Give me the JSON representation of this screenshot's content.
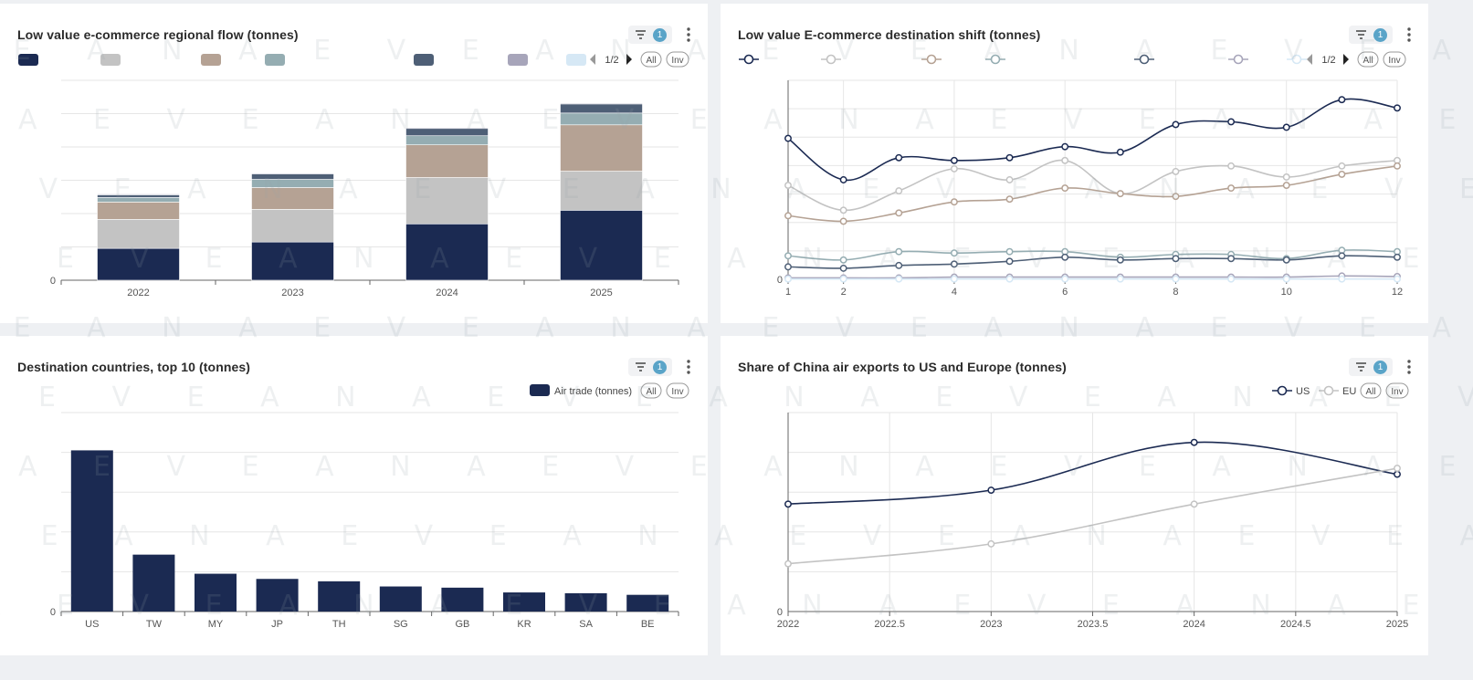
{
  "watermark": "A E V E A N",
  "panels": {
    "p1": {
      "title": "Low value e-commerce regional flow (tonnes)",
      "filter_count": "1"
    },
    "p2": {
      "title": "Low value E-commerce destination shift (tonnes)",
      "filter_count": "1"
    },
    "p3": {
      "title": "Destination countries, top 10 (tonnes)",
      "filter_count": "1"
    },
    "p4": {
      "title": "Share of China air exports to US and Europe (tonnes)",
      "filter_count": "1"
    }
  },
  "legend_controls": {
    "page": "1/2",
    "all": "All",
    "inv": "Inv"
  },
  "colors": {
    "navy": "#1b2a52",
    "silver": "#c3c3c3",
    "taupe": "#b5a294",
    "teal": "#95adb2",
    "slate": "#4e5f76",
    "lavender": "#a7a5ba",
    "lightblue": "#d6e8f5"
  },
  "chart_data": [
    {
      "id": "p1",
      "type": "bar",
      "stacked": true,
      "categories": [
        "2022",
        "2023",
        "2024",
        "2025"
      ],
      "y_tick_labels": [
        "0"
      ],
      "series": [
        {
          "color": "#1b2a52",
          "values": [
            35,
            42,
            62,
            77
          ]
        },
        {
          "color": "#c3c3c3",
          "values": [
            32,
            36,
            51,
            43
          ]
        },
        {
          "color": "#b5a294",
          "values": [
            19,
            24,
            36,
            51
          ]
        },
        {
          "color": "#95adb2",
          "values": [
            5,
            9,
            10,
            13
          ]
        },
        {
          "color": "#4e5f76",
          "values": [
            3,
            6,
            8,
            10
          ]
        },
        {
          "color": "#a7a5ba",
          "values": [
            1,
            1,
            1,
            1
          ]
        },
        {
          "color": "#d6e8f5",
          "values": [
            0.5,
            0.5,
            0.5,
            0.5
          ]
        }
      ],
      "ylim": [
        0,
        220
      ],
      "grid": true,
      "legend": "top-left"
    },
    {
      "id": "p2",
      "type": "line",
      "smooth": true,
      "x": [
        1,
        2,
        3,
        4,
        5,
        6,
        7,
        8,
        9,
        10,
        11,
        12
      ],
      "x_tick_labels": [
        "1",
        "2",
        "4",
        "6",
        "8",
        "10",
        "12"
      ],
      "y_tick_labels": [
        "0"
      ],
      "series": [
        {
          "color": "#1b2a52",
          "values": [
            51,
            36,
            44,
            43,
            44,
            48,
            46,
            56,
            57,
            55,
            65,
            62
          ]
        },
        {
          "color": "#c3c3c3",
          "values": [
            34,
            25,
            32,
            40,
            36,
            43,
            31,
            39,
            41,
            37,
            41,
            43
          ]
        },
        {
          "color": "#b5a294",
          "values": [
            23,
            21,
            24,
            28,
            29,
            33,
            31,
            30,
            33,
            34,
            38,
            41
          ]
        },
        {
          "color": "#95adb2",
          "values": [
            8.5,
            7,
            10,
            9.5,
            10,
            10,
            8,
            9,
            9,
            7.5,
            10.5,
            10
          ]
        },
        {
          "color": "#4e5f76",
          "values": [
            4.5,
            4,
            5,
            5.5,
            6.5,
            8,
            7,
            7.5,
            7.5,
            7,
            8.5,
            8
          ]
        },
        {
          "color": "#a7a5ba",
          "values": [
            0.5,
            0.5,
            0.5,
            0.8,
            0.8,
            0.8,
            0.8,
            0.8,
            0.8,
            0.8,
            1.2,
            1
          ]
        },
        {
          "color": "#d6e8f5",
          "values": [
            0.1,
            0.1,
            0.1,
            0.1,
            0.1,
            0.1,
            0.1,
            0.1,
            0.1,
            0.1,
            0.1,
            0.1
          ]
        }
      ],
      "ylim": [
        0,
        72
      ],
      "xlim": [
        1,
        12
      ],
      "grid": true,
      "legend": "top-left"
    },
    {
      "id": "p3",
      "type": "bar",
      "categories": [
        "US",
        "TW",
        "MY",
        "JP",
        "TH",
        "SG",
        "GB",
        "KR",
        "SA",
        "BE"
      ],
      "y_tick_labels": [
        "0"
      ],
      "series": [
        {
          "name": "Air trade (tonnes)",
          "color": "#1b2a52",
          "values": [
            405,
            143,
            95,
            82,
            76,
            63,
            60,
            48,
            46,
            42
          ]
        }
      ],
      "ylim": [
        0,
        500
      ],
      "grid": true,
      "legend": "top-right"
    },
    {
      "id": "p4",
      "type": "line",
      "smooth": true,
      "x": [
        2022,
        2023,
        2024,
        2025
      ],
      "x_tick_labels": [
        "2022",
        "2022.5",
        "2023",
        "2023.5",
        "2024",
        "2024.5",
        "2025"
      ],
      "y_tick_labels": [
        "0"
      ],
      "series": [
        {
          "name": "US",
          "color": "#1b2a52",
          "values": [
            27,
            30.5,
            42.5,
            34.5
          ]
        },
        {
          "name": "EU",
          "color": "#c3c3c3",
          "values": [
            12,
            17,
            27,
            36
          ]
        }
      ],
      "ylim": [
        0,
        50
      ],
      "xlim": [
        2022,
        2025
      ],
      "grid": true,
      "legend": "top-right"
    }
  ]
}
